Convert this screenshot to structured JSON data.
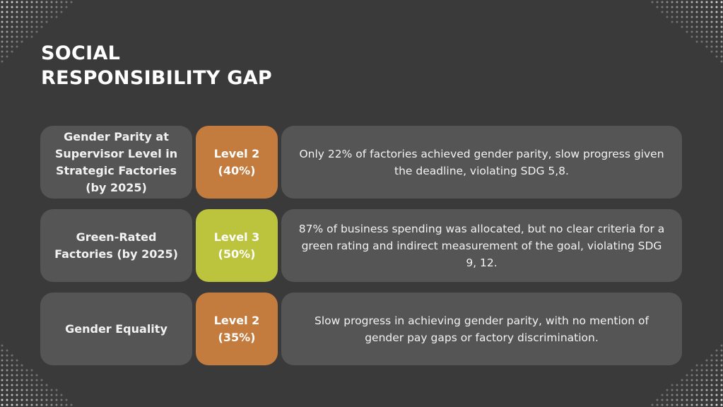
{
  "slide": {
    "title_line1": "SOCIAL",
    "title_line2": "RESPONSIBILITY GAP"
  },
  "colors": {
    "background": "#3a3a3a",
    "panel": "#555555",
    "level_orange": "#c47c3e",
    "level_lime": "#bcc33c"
  },
  "rows": [
    {
      "goal": "Gender Parity at Supervisor Level in Strategic Factories (by 2025)",
      "level": "Level 2\n(40%)",
      "level_color": "orange",
      "description": "Only 22% of factories achieved gender parity, slow progress given the deadline, violating SDG 5,8."
    },
    {
      "goal": "Green-Rated Factories (by 2025)",
      "level": "Level 3\n(50%)",
      "level_color": "lime",
      "description": "87% of business spending was allocated, but no clear criteria for a green rating and indirect measurement of the goal, violating SDG 9, 12."
    },
    {
      "goal": "Gender Equality",
      "level": "Level 2\n(35%)",
      "level_color": "orange",
      "description": "Slow progress in achieving gender parity, with no mention of gender pay gaps or factory discrimination."
    }
  ]
}
